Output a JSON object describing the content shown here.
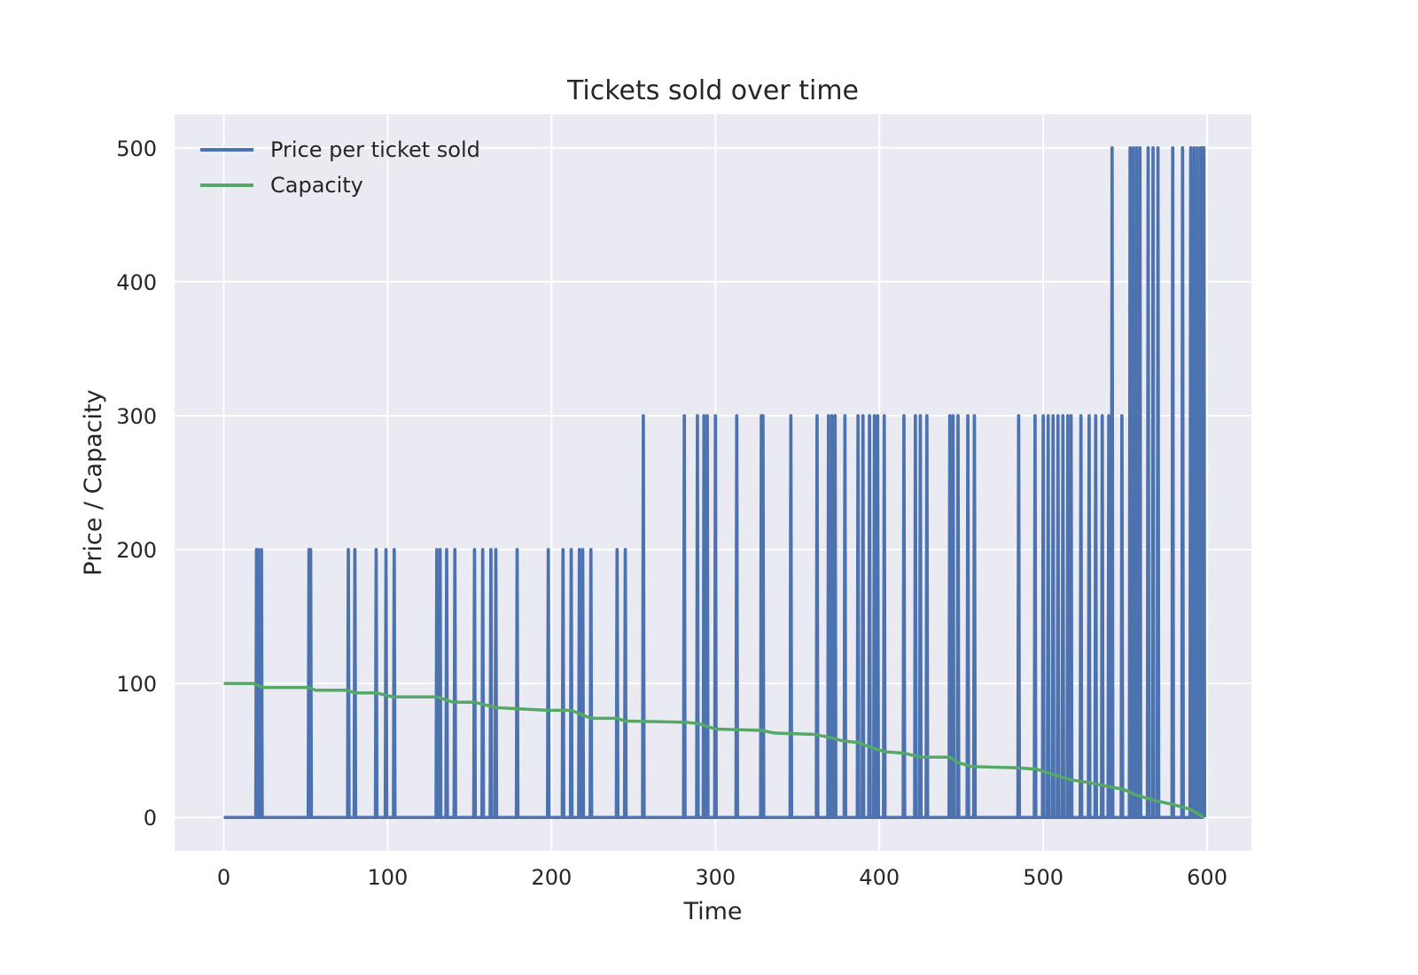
{
  "chart_data": {
    "type": "line",
    "title": "Tickets sold over time",
    "xlabel": "Time",
    "ylabel": "Price / Capacity",
    "xlim": [
      -30,
      627
    ],
    "ylim": [
      -25,
      525
    ],
    "xticks": [
      0,
      100,
      200,
      300,
      400,
      500,
      600
    ],
    "yticks": [
      0,
      100,
      200,
      300,
      400,
      500
    ],
    "grid": true,
    "legend": "top-left",
    "colors": {
      "background": "#eaeaf2",
      "grid": "#ffffff",
      "price": "#4c72b0",
      "capacity": "#55a868"
    },
    "series": [
      {
        "name": "Price per ticket sold",
        "kind": "spikes",
        "x_range": [
          0,
          598
        ],
        "baseline": 0,
        "spikes": [
          {
            "x": 20,
            "y": 200
          },
          {
            "x": 21,
            "y": 200
          },
          {
            "x": 23,
            "y": 200
          },
          {
            "x": 52,
            "y": 200
          },
          {
            "x": 53,
            "y": 200
          },
          {
            "x": 76,
            "y": 200
          },
          {
            "x": 80,
            "y": 200
          },
          {
            "x": 93,
            "y": 200
          },
          {
            "x": 99,
            "y": 200
          },
          {
            "x": 104,
            "y": 200
          },
          {
            "x": 130,
            "y": 200
          },
          {
            "x": 132,
            "y": 200
          },
          {
            "x": 136,
            "y": 200
          },
          {
            "x": 141,
            "y": 200
          },
          {
            "x": 153,
            "y": 200
          },
          {
            "x": 158,
            "y": 200
          },
          {
            "x": 163,
            "y": 200
          },
          {
            "x": 166,
            "y": 200
          },
          {
            "x": 179,
            "y": 200
          },
          {
            "x": 198,
            "y": 200
          },
          {
            "x": 207,
            "y": 200
          },
          {
            "x": 212,
            "y": 200
          },
          {
            "x": 217,
            "y": 200
          },
          {
            "x": 219,
            "y": 200
          },
          {
            "x": 224,
            "y": 200
          },
          {
            "x": 240,
            "y": 200
          },
          {
            "x": 245,
            "y": 200
          },
          {
            "x": 256,
            "y": 300
          },
          {
            "x": 281,
            "y": 300
          },
          {
            "x": 289,
            "y": 300
          },
          {
            "x": 293,
            "y": 300
          },
          {
            "x": 295,
            "y": 300
          },
          {
            "x": 300,
            "y": 300
          },
          {
            "x": 313,
            "y": 300
          },
          {
            "x": 328,
            "y": 300
          },
          {
            "x": 329,
            "y": 300
          },
          {
            "x": 346,
            "y": 300
          },
          {
            "x": 362,
            "y": 300
          },
          {
            "x": 369,
            "y": 300
          },
          {
            "x": 371,
            "y": 300
          },
          {
            "x": 373,
            "y": 300
          },
          {
            "x": 379,
            "y": 300
          },
          {
            "x": 387,
            "y": 300
          },
          {
            "x": 390,
            "y": 300
          },
          {
            "x": 394,
            "y": 300
          },
          {
            "x": 397,
            "y": 300
          },
          {
            "x": 399,
            "y": 300
          },
          {
            "x": 403,
            "y": 300
          },
          {
            "x": 415,
            "y": 300
          },
          {
            "x": 422,
            "y": 300
          },
          {
            "x": 425,
            "y": 300
          },
          {
            "x": 429,
            "y": 300
          },
          {
            "x": 443,
            "y": 300
          },
          {
            "x": 445,
            "y": 300
          },
          {
            "x": 448,
            "y": 300
          },
          {
            "x": 454,
            "y": 300
          },
          {
            "x": 458,
            "y": 300
          },
          {
            "x": 485,
            "y": 300
          },
          {
            "x": 495,
            "y": 300
          },
          {
            "x": 500,
            "y": 300
          },
          {
            "x": 503,
            "y": 300
          },
          {
            "x": 506,
            "y": 300
          },
          {
            "x": 509,
            "y": 300
          },
          {
            "x": 512,
            "y": 300
          },
          {
            "x": 515,
            "y": 300
          },
          {
            "x": 517,
            "y": 300
          },
          {
            "x": 523,
            "y": 300
          },
          {
            "x": 528,
            "y": 300
          },
          {
            "x": 532,
            "y": 300
          },
          {
            "x": 536,
            "y": 300
          },
          {
            "x": 540,
            "y": 300
          },
          {
            "x": 542,
            "y": 500
          },
          {
            "x": 548,
            "y": 300
          },
          {
            "x": 553,
            "y": 500
          },
          {
            "x": 555,
            "y": 500
          },
          {
            "x": 557,
            "y": 500
          },
          {
            "x": 559,
            "y": 500
          },
          {
            "x": 564,
            "y": 500
          },
          {
            "x": 567,
            "y": 500
          },
          {
            "x": 570,
            "y": 500
          },
          {
            "x": 579,
            "y": 500
          },
          {
            "x": 585,
            "y": 500
          },
          {
            "x": 590,
            "y": 500
          },
          {
            "x": 592,
            "y": 500
          },
          {
            "x": 594,
            "y": 500
          },
          {
            "x": 596,
            "y": 500
          },
          {
            "x": 597,
            "y": 500
          },
          {
            "x": 598,
            "y": 500
          }
        ]
      },
      {
        "name": "Capacity",
        "kind": "line",
        "points": [
          [
            0,
            100
          ],
          [
            18,
            100
          ],
          [
            24,
            97
          ],
          [
            52,
            97
          ],
          [
            56,
            95
          ],
          [
            75,
            95
          ],
          [
            80,
            93
          ],
          [
            93,
            93
          ],
          [
            103,
            90
          ],
          [
            130,
            90
          ],
          [
            140,
            86
          ],
          [
            153,
            86
          ],
          [
            166,
            82
          ],
          [
            198,
            80
          ],
          [
            212,
            80
          ],
          [
            224,
            74
          ],
          [
            240,
            74
          ],
          [
            245,
            72
          ],
          [
            283,
            71
          ],
          [
            290,
            70
          ],
          [
            300,
            66
          ],
          [
            328,
            65
          ],
          [
            336,
            63
          ],
          [
            360,
            62
          ],
          [
            369,
            60
          ],
          [
            378,
            57
          ],
          [
            387,
            56
          ],
          [
            398,
            51
          ],
          [
            404,
            49
          ],
          [
            415,
            48
          ],
          [
            425,
            45
          ],
          [
            443,
            45
          ],
          [
            448,
            41
          ],
          [
            456,
            38
          ],
          [
            485,
            37
          ],
          [
            496,
            36
          ],
          [
            509,
            31
          ],
          [
            517,
            28
          ],
          [
            528,
            26
          ],
          [
            540,
            23
          ],
          [
            549,
            21
          ],
          [
            556,
            17
          ],
          [
            570,
            12
          ],
          [
            578,
            10
          ],
          [
            590,
            6
          ],
          [
            598,
            0
          ]
        ]
      }
    ]
  }
}
